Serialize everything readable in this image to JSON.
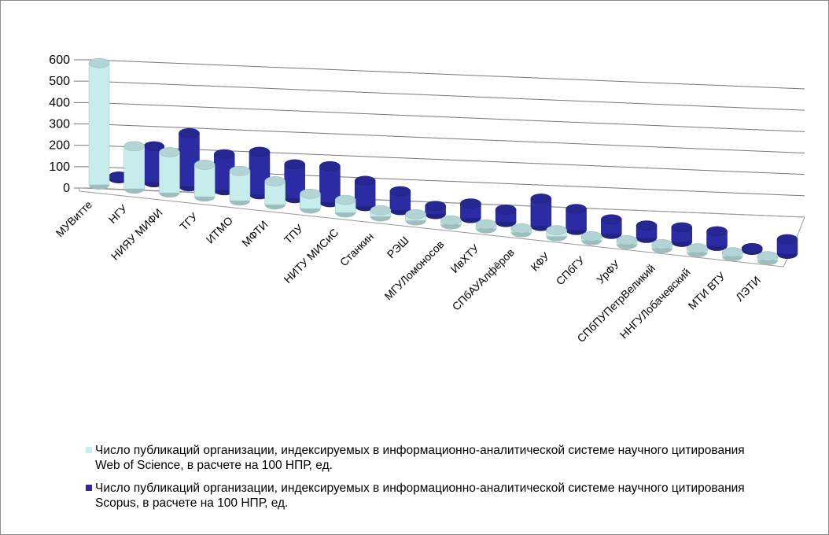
{
  "chart_data": {
    "type": "bar3d",
    "categories": [
      "МУВитте",
      "НГУ",
      "НИЯУ МИФИ",
      "ТГУ",
      "ИТМО",
      "МФТИ",
      "ТПУ",
      "НИТУ МИСиС",
      "Станкин",
      "РЭШ",
      "МГУЛомоносов",
      "ИвХТУ",
      "СПбАУАлфёров",
      "КФУ",
      "СПбГУ",
      "УрФУ",
      "СПбПУПетрВеликий",
      "ННГУЛобачевский",
      "МТИ ВТУ",
      "ЛЭТИ"
    ],
    "series": [
      {
        "name": "Число публикаций организации, индексируемых в информационно-аналитической системе научного цитирования Web of Science, в расчете на 100 НПР, ед.",
        "color": "#c6ecec",
        "values": [
          570,
          200,
          190,
          150,
          140,
          110,
          70,
          60,
          30,
          30,
          20,
          20,
          20,
          30,
          20,
          20,
          20,
          20,
          20,
          20
        ]
      },
      {
        "name": "Число публикаций организации, индексируемых в информационно-аналитической системе научного цитирования Scopus, в расчете на 100 НПР, ед.",
        "color": "#2b2ba3",
        "values": [
          10,
          170,
          250,
          170,
          200,
          160,
          170,
          120,
          90,
          40,
          70,
          60,
          130,
          100,
          70,
          60,
          70,
          70,
          10,
          70
        ]
      }
    ],
    "ylim": [
      0,
      600
    ],
    "yticks": [
      0,
      100,
      200,
      300,
      400,
      500,
      600
    ],
    "grid": true
  }
}
